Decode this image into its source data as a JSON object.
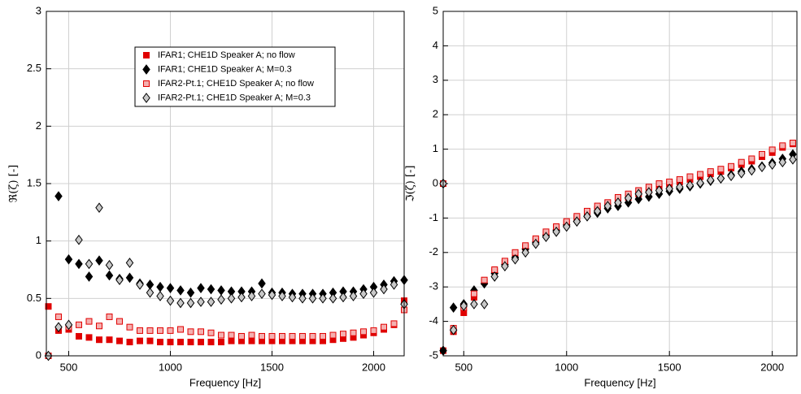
{
  "chart_data": [
    {
      "type": "scatter",
      "xlabel": "Frequency [Hz]",
      "ylabel": "ℜ(ζ) [-]",
      "xlim": [
        390,
        2150
      ],
      "xticks": [
        500,
        1000,
        1500,
        2000
      ],
      "ylim": [
        0,
        3
      ],
      "yticks": [
        0,
        0.5,
        1,
        1.5,
        2,
        2.5,
        3
      ],
      "grid": true,
      "legend": "upper center",
      "x": [
        400,
        450,
        500,
        550,
        600,
        650,
        700,
        750,
        800,
        850,
        900,
        950,
        1000,
        1050,
        1100,
        1150,
        1200,
        1250,
        1300,
        1350,
        1400,
        1450,
        1500,
        1550,
        1600,
        1650,
        1700,
        1750,
        1800,
        1850,
        1900,
        1950,
        2000,
        2050,
        2100,
        2150
      ],
      "series": [
        {
          "name": "IFAR1; CHE1D Speaker A; no flow",
          "marker": "square",
          "color": "#e00000",
          "fill": "#e00000",
          "values": [
            0.43,
            0.22,
            0.23,
            0.17,
            0.16,
            0.14,
            0.14,
            0.13,
            0.12,
            0.13,
            0.13,
            0.12,
            0.12,
            0.12,
            0.12,
            0.12,
            0.12,
            0.12,
            0.13,
            0.13,
            0.13,
            0.13,
            0.13,
            0.13,
            0.13,
            0.13,
            0.13,
            0.13,
            0.14,
            0.15,
            0.16,
            0.18,
            0.2,
            0.23,
            0.27,
            0.48
          ]
        },
        {
          "name": "IFAR1; CHE1D Speaker A; M=0.3",
          "marker": "diamond",
          "color": "#000000",
          "fill": "#000000",
          "values": [
            null,
            1.39,
            0.84,
            0.8,
            0.69,
            0.83,
            0.7,
            0.67,
            0.68,
            0.63,
            0.62,
            0.6,
            0.59,
            0.57,
            0.55,
            0.59,
            0.58,
            0.57,
            0.56,
            0.56,
            0.56,
            0.63,
            0.55,
            0.55,
            0.54,
            0.54,
            0.54,
            0.54,
            0.55,
            0.56,
            0.56,
            0.58,
            0.6,
            0.62,
            0.65,
            0.66
          ]
        },
        {
          "name": "IFAR2-Pt.1; CHE1D Speaker A; no flow",
          "marker": "square",
          "color": "#e00000",
          "fill": "#f4b0b0",
          "values": [
            0.0,
            0.34,
            0.25,
            0.27,
            0.3,
            0.26,
            0.34,
            0.3,
            0.25,
            0.22,
            0.22,
            0.22,
            0.22,
            0.23,
            0.21,
            0.21,
            0.2,
            0.18,
            0.18,
            0.17,
            0.18,
            0.17,
            0.17,
            0.17,
            0.17,
            0.17,
            0.17,
            0.17,
            0.18,
            0.19,
            0.2,
            0.21,
            0.22,
            0.25,
            0.28,
            0.4
          ]
        },
        {
          "name": "IFAR2-Pt.1; CHE1D Speaker A; M=0.3",
          "marker": "diamond",
          "color": "#000000",
          "fill": "#c8c8c8",
          "values": [
            0.0,
            0.25,
            0.27,
            1.01,
            0.8,
            1.29,
            0.79,
            0.66,
            0.81,
            0.62,
            0.55,
            0.52,
            0.48,
            0.46,
            0.46,
            0.47,
            0.47,
            0.49,
            0.5,
            0.51,
            0.52,
            0.54,
            0.53,
            0.52,
            0.51,
            0.5,
            0.5,
            0.5,
            0.5,
            0.51,
            0.52,
            0.54,
            0.55,
            0.58,
            0.62,
            0.45
          ]
        }
      ]
    },
    {
      "type": "scatter",
      "xlabel": "Frequency [Hz]",
      "ylabel": "ℑ(ζ) [-]",
      "xlim": [
        400,
        2120
      ],
      "xticks": [
        500,
        1000,
        1500,
        2000
      ],
      "ylim": [
        -5,
        5
      ],
      "yticks": [
        -5,
        -4,
        -3,
        -2,
        -1,
        0,
        1,
        2,
        3,
        4,
        5
      ],
      "grid": true,
      "x": [
        400,
        450,
        500,
        550,
        600,
        650,
        700,
        750,
        800,
        850,
        900,
        950,
        1000,
        1050,
        1100,
        1150,
        1200,
        1250,
        1300,
        1350,
        1400,
        1450,
        1500,
        1550,
        1600,
        1650,
        1700,
        1750,
        1800,
        1850,
        1900,
        1950,
        2000,
        2050,
        2100
      ],
      "series": [
        {
          "marker": "square",
          "color": "#e00000",
          "fill": "#e00000",
          "values": [
            -4.85,
            -4.3,
            -3.75,
            -3.3,
            -2.85,
            -2.55,
            -2.3,
            -2.05,
            -1.85,
            -1.65,
            -1.45,
            -1.3,
            -1.15,
            -1.0,
            -0.9,
            -0.75,
            -0.65,
            -0.5,
            -0.4,
            -0.3,
            -0.2,
            -0.1,
            -0.02,
            0.05,
            0.12,
            0.2,
            0.28,
            0.35,
            0.45,
            0.55,
            0.65,
            0.78,
            0.9,
            1.05,
            1.15
          ]
        },
        {
          "marker": "diamond",
          "color": "#000000",
          "fill": "#000000",
          "values": [
            -4.85,
            -3.6,
            -3.5,
            -3.1,
            -2.9,
            -2.6,
            -2.35,
            -2.15,
            -1.9,
            -1.7,
            -1.5,
            -1.35,
            -1.2,
            -1.1,
            -0.95,
            -0.85,
            -0.72,
            -0.65,
            -0.55,
            -0.45,
            -0.38,
            -0.3,
            -0.22,
            -0.15,
            -0.08,
            0.0,
            0.08,
            0.15,
            0.25,
            0.35,
            0.42,
            0.5,
            0.6,
            0.72,
            0.85
          ]
        },
        {
          "marker": "square",
          "color": "#e00000",
          "fill": "#f4b0b0",
          "values": [
            0,
            -4.2,
            -3.6,
            -3.2,
            -2.8,
            -2.5,
            -2.25,
            -2.0,
            -1.8,
            -1.6,
            -1.4,
            -1.25,
            -1.1,
            -0.95,
            -0.8,
            -0.65,
            -0.55,
            -0.4,
            -0.3,
            -0.2,
            -0.1,
            0.0,
            0.05,
            0.12,
            0.2,
            0.27,
            0.35,
            0.42,
            0.5,
            0.62,
            0.72,
            0.85,
            0.98,
            1.1,
            1.18
          ]
        },
        {
          "marker": "diamond",
          "color": "#000000",
          "fill": "#c8c8c8",
          "values": [
            0,
            -4.25,
            -3.55,
            -3.5,
            -3.5,
            -2.7,
            -2.4,
            -2.2,
            -2.0,
            -1.75,
            -1.55,
            -1.4,
            -1.25,
            -1.1,
            -0.95,
            -0.8,
            -0.65,
            -0.55,
            -0.42,
            -0.3,
            -0.25,
            -0.2,
            -0.15,
            -0.1,
            -0.05,
            0.02,
            0.1,
            0.15,
            0.22,
            0.3,
            0.38,
            0.48,
            0.55,
            0.62,
            0.7
          ]
        }
      ]
    }
  ]
}
